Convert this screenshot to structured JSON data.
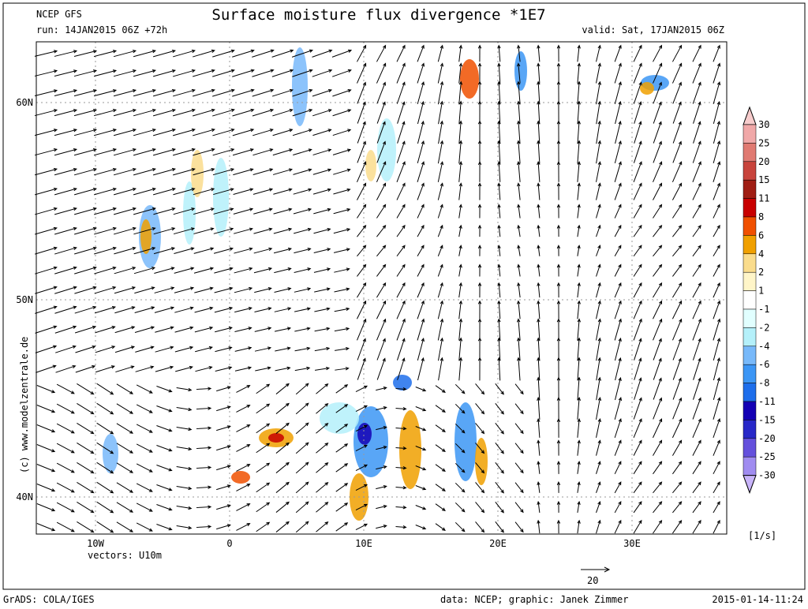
{
  "header": {
    "model": "NCEP GFS",
    "run": "run: 14JAN2015 06Z +72h",
    "title": "Surface moisture flux divergence *1E7",
    "valid": "valid: Sat, 17JAN2015 06Z"
  },
  "map": {
    "lat_labels": [
      "60N",
      "50N",
      "40N"
    ],
    "lon_labels": [
      "10W",
      "0",
      "10E",
      "20E",
      "30E"
    ],
    "vectors_label": "vectors: U10m",
    "copyright": "(c) www.modelzentrale.de",
    "reference_vector": "20"
  },
  "colorbar": {
    "labels": [
      "30",
      "25",
      "20",
      "15",
      "11",
      "8",
      "6",
      "4",
      "2",
      "1",
      "-1",
      "-2",
      "-4",
      "-6",
      "-8",
      "-11",
      "-15",
      "-20",
      "-25",
      "-30"
    ],
    "colors": [
      "#f7cccc",
      "#f0a8a8",
      "#e07a72",
      "#c8443c",
      "#a01e14",
      "#c80000",
      "#f05000",
      "#f0a000",
      "#fadc8c",
      "#fff5c8",
      "#ffffff",
      "#e1ffff",
      "#b4f0fa",
      "#78b9fa",
      "#3c96f5",
      "#1e6eeb",
      "#1400b4",
      "#2828c8",
      "#6450dc",
      "#a08cf0",
      "#c8b4fa"
    ],
    "unit": "[1/s]"
  },
  "footer": {
    "left": "GrADS: COLA/IGES",
    "center": "data: NCEP; graphic: Janek Zimmer",
    "right": "2015-01-14-11:24"
  }
}
